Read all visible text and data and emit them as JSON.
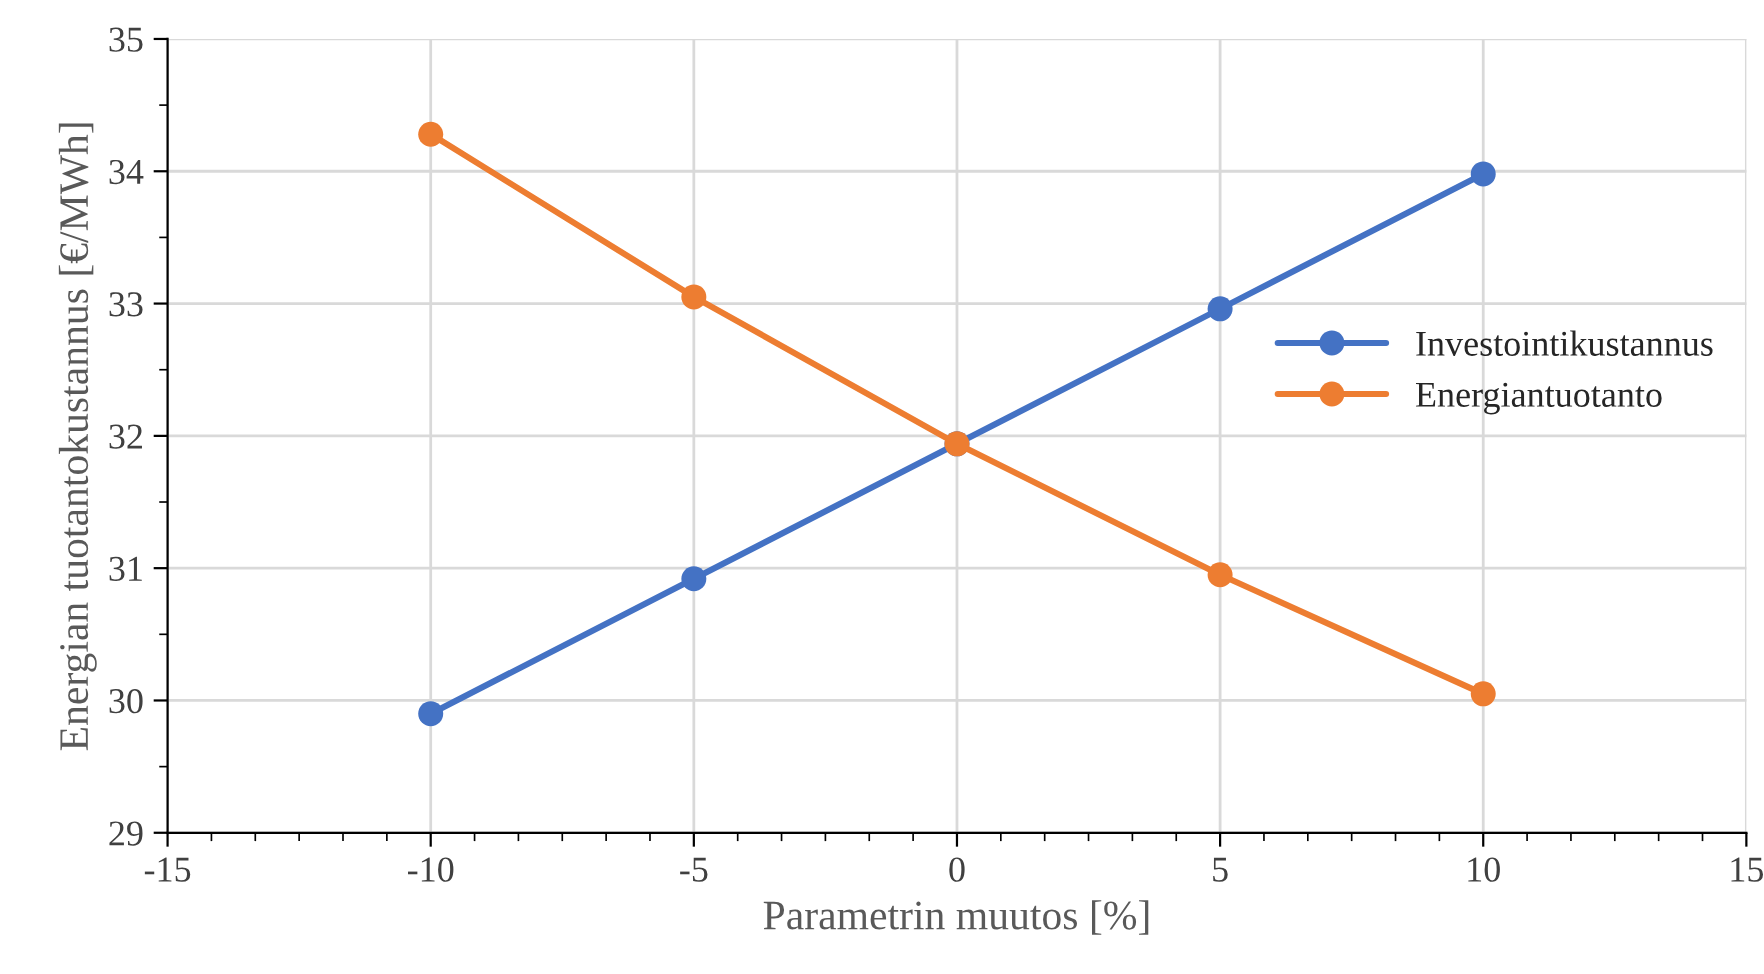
{
  "chart_data": {
    "type": "line",
    "xlabel": "Parametrin muutos [%]",
    "ylabel": "Energian tuotantokustannus [€/MWh]",
    "x": [
      -10,
      -5,
      0,
      5,
      10
    ],
    "series": [
      {
        "name": "Investointikustannus",
        "color": "#4472c4",
        "values": [
          29.9,
          30.92,
          31.94,
          32.96,
          33.98
        ]
      },
      {
        "name": "Energiantuotanto",
        "color": "#ed7d31",
        "values": [
          34.28,
          33.05,
          31.94,
          30.95,
          30.05
        ]
      }
    ],
    "xlim": [
      -15,
      15
    ],
    "xticks": [
      -15,
      -10,
      -5,
      0,
      5,
      10,
      15
    ],
    "ylim": [
      29,
      35
    ],
    "yticks": [
      29,
      30,
      31,
      32,
      33,
      34,
      35
    ],
    "grid": true,
    "legend": "right",
    "marker": "circle",
    "line_style": "solid"
  }
}
